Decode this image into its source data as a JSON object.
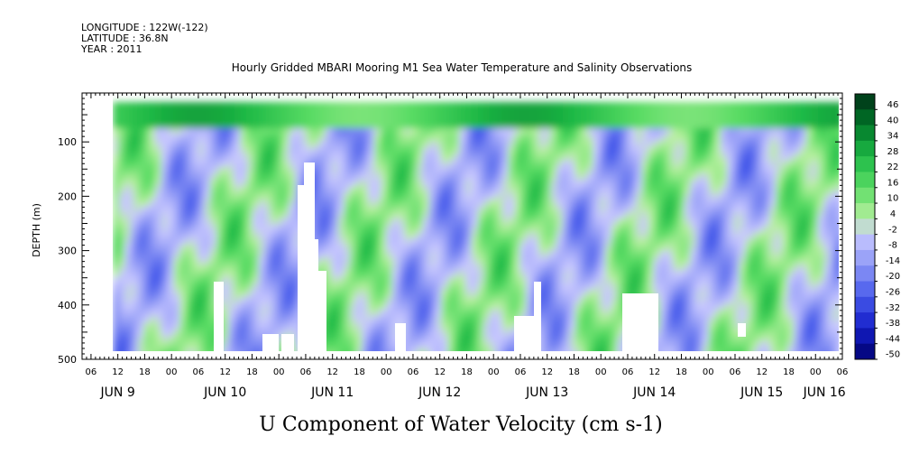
{
  "header": {
    "longitude": "LONGITUDE : 122W(-122)",
    "latitude": "LATITUDE : 36.8N",
    "year": "YEAR : 2011"
  },
  "chart_data": {
    "type": "heatmap",
    "title": "Hourly Gridded MBARI Mooring M1 Sea Water Temperature and Salinity Observations",
    "subtitle": "U Component of Water Velocity (cm s-1)",
    "ylabel": "DEPTH (m)",
    "ylim": [
      500,
      0
    ],
    "y_ticks": [
      100,
      200,
      300,
      400,
      500
    ],
    "x_range_hours": [
      "2011-06-09T04:00",
      "2011-06-16T06:00"
    ],
    "x_hour_ticks": [
      "06",
      "12",
      "18",
      "00",
      "06",
      "12",
      "18",
      "00",
      "06",
      "12",
      "18",
      "00",
      "06",
      "12",
      "18",
      "00",
      "06",
      "12",
      "18",
      "00",
      "06",
      "12",
      "18",
      "00",
      "06",
      "12",
      "18",
      "00",
      "06"
    ],
    "x_day_labels": [
      "JUN  9",
      "JUN 10",
      "JUN 11",
      "JUN 12",
      "JUN 13",
      "JUN 14",
      "JUN 15",
      "JUN 16"
    ],
    "colorbar": {
      "min": -50,
      "max": 50,
      "labels": [
        "46",
        "40",
        "34",
        "28",
        "22",
        "16",
        "10",
        "4",
        "-2",
        "-8",
        "-14",
        "-20",
        "-26",
        "-32",
        "-38",
        "-44",
        "-50"
      ],
      "colors": {
        "strong_positive": "#00401a",
        "positive": "#2ec84a",
        "weak_positive": "#b8f0a0",
        "weak_negative": "#c8c8ff",
        "negative": "#6f78f2",
        "strong_negative": "#00006e"
      }
    }
  }
}
